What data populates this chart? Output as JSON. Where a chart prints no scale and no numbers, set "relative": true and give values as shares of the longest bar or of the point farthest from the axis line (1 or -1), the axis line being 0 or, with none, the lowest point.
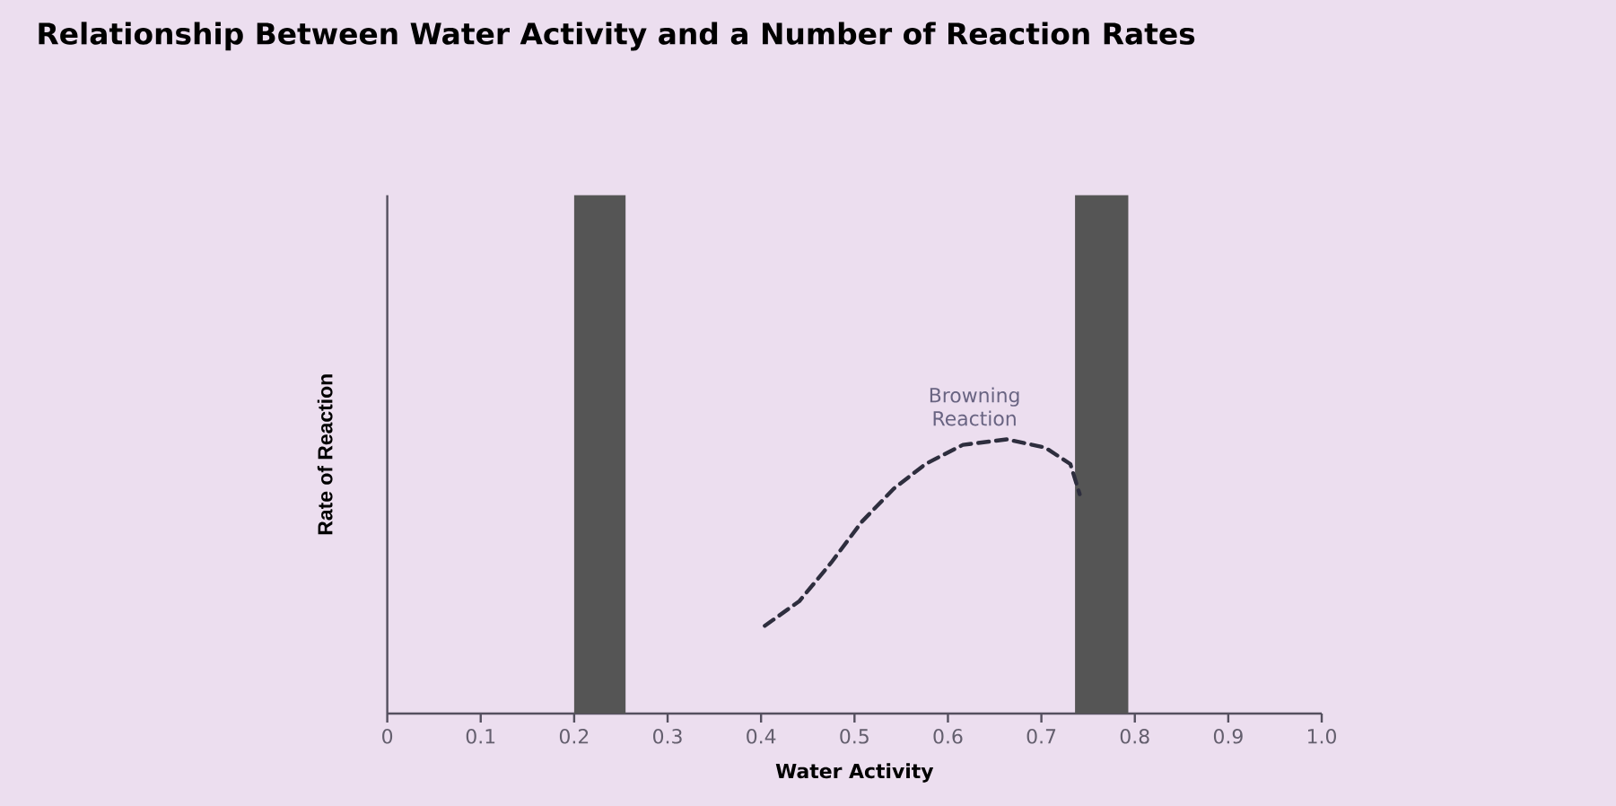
{
  "chart_data": {
    "type": "line",
    "title": "Relationship Between Water Activity and a Number of  Reaction Rates",
    "xlabel": "Water Activity",
    "ylabel": "Rate of Reaction",
    "relative": true,
    "x": [
      0.404,
      0.441,
      0.475,
      0.508,
      0.542,
      0.576,
      0.616,
      0.663,
      0.704,
      0.731,
      0.741
    ],
    "series": [
      {
        "color": "#2e2e3e",
        "values": [
          0.32,
          0.41,
          0.55,
          0.7,
          0.82,
          0.91,
          0.98,
          1,
          0.97,
          0.91,
          0.8
        ]
      }
    ],
    "line_style": "dashed",
    "xlim": [
      0,
      1
    ],
    "xticks": [
      0,
      0.1,
      0.2,
      0.3,
      0.4,
      0.5,
      0.6,
      0.7,
      0.8,
      0.9,
      {
        "value": 1,
        "label": "1.0"
      }
    ],
    "bands": [
      {
        "axis": "x",
        "from": 0.2,
        "to": 0.255,
        "color": "#555555"
      },
      {
        "axis": "x",
        "from": 0.736,
        "to": 0.793,
        "color": "#555555"
      }
    ],
    "annotations": [
      "Browning Reaction"
    ]
  }
}
